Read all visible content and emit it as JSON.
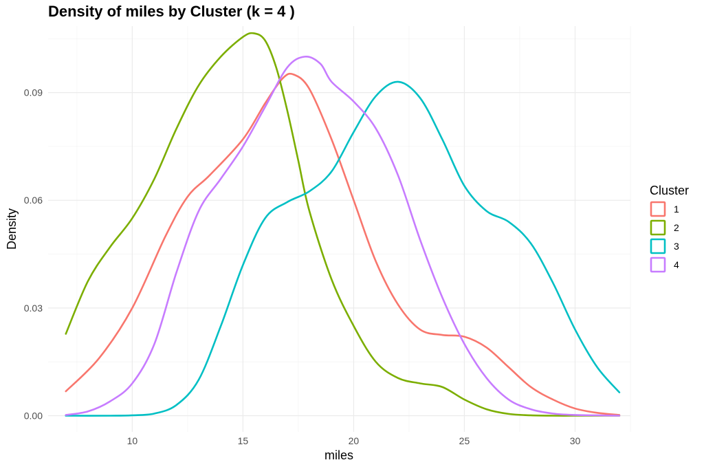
{
  "chart_data": {
    "type": "line",
    "subtype": "density",
    "title": "Density of miles by Cluster (k = 4 )",
    "xlabel": "miles",
    "ylabel": "Density",
    "xlim": [
      6.2,
      32.5
    ],
    "ylim": [
      -0.0045,
      0.1085
    ],
    "x_ticks": [
      10,
      15,
      20,
      25,
      30
    ],
    "x_tick_labels": [
      "10",
      "15",
      "20",
      "25",
      "30"
    ],
    "y_ticks": [
      0,
      0.03,
      0.06,
      0.09
    ],
    "y_tick_labels": [
      "0.00",
      "0.03",
      "0.06",
      "0.09"
    ],
    "grid": true,
    "legend": {
      "title": "Cluster",
      "position": "right"
    },
    "series": [
      {
        "name": "1",
        "color": "#F8766D",
        "x": [
          7,
          8.5,
          10,
          11.5,
          12.5,
          13.5,
          15,
          16,
          16.8,
          17.3,
          18,
          19,
          20,
          21,
          22,
          23,
          24,
          25,
          26,
          27,
          28,
          29,
          30,
          31,
          32
        ],
        "y": [
          0.0068,
          0.016,
          0.03,
          0.05,
          0.061,
          0.067,
          0.077,
          0.087,
          0.094,
          0.095,
          0.091,
          0.077,
          0.06,
          0.043,
          0.031,
          0.024,
          0.0225,
          0.022,
          0.019,
          0.0135,
          0.008,
          0.0045,
          0.002,
          0.0008,
          0.0002
        ]
      },
      {
        "name": "2",
        "color": "#7CAE00",
        "x": [
          7,
          8,
          9,
          10,
          11,
          12,
          13,
          14,
          15,
          15.5,
          16,
          16.5,
          17,
          17.5,
          18,
          19,
          20,
          21,
          22,
          23,
          24,
          25,
          26,
          27,
          28,
          29,
          30,
          31,
          32
        ],
        "y": [
          0.0228,
          0.0375,
          0.047,
          0.055,
          0.066,
          0.08,
          0.092,
          0.1,
          0.1055,
          0.1065,
          0.1045,
          0.097,
          0.085,
          0.071,
          0.057,
          0.038,
          0.025,
          0.015,
          0.0105,
          0.009,
          0.008,
          0.0045,
          0.0018,
          0.0005,
          0.0001,
          0,
          0,
          0,
          0
        ]
      },
      {
        "name": "3",
        "color": "#00BFC4",
        "x": [
          7,
          9,
          10,
          11,
          12,
          13,
          14,
          15,
          16,
          17,
          18,
          19,
          20,
          21,
          22,
          23,
          24,
          25,
          26,
          27,
          28,
          29,
          30,
          31,
          32
        ],
        "y": [
          0,
          0,
          0.0001,
          0.0006,
          0.003,
          0.01,
          0.025,
          0.042,
          0.055,
          0.0595,
          0.0625,
          0.068,
          0.079,
          0.089,
          0.093,
          0.0885,
          0.077,
          0.064,
          0.057,
          0.054,
          0.048,
          0.037,
          0.024,
          0.0135,
          0.0065
        ]
      },
      {
        "name": "4",
        "color": "#C77CFF",
        "x": [
          7,
          8,
          9,
          10,
          11,
          12,
          13,
          14,
          15,
          16,
          17,
          17.8,
          18.5,
          19,
          20,
          21,
          22,
          23,
          24,
          25,
          26,
          27,
          28,
          29,
          30,
          31,
          32
        ],
        "y": [
          0.0002,
          0.0012,
          0.004,
          0.009,
          0.02,
          0.04,
          0.057,
          0.066,
          0.075,
          0.086,
          0.097,
          0.1,
          0.098,
          0.093,
          0.0875,
          0.08,
          0.067,
          0.049,
          0.033,
          0.02,
          0.0105,
          0.0045,
          0.0018,
          0.0006,
          0.0002,
          0.0001,
          0
        ]
      }
    ]
  }
}
